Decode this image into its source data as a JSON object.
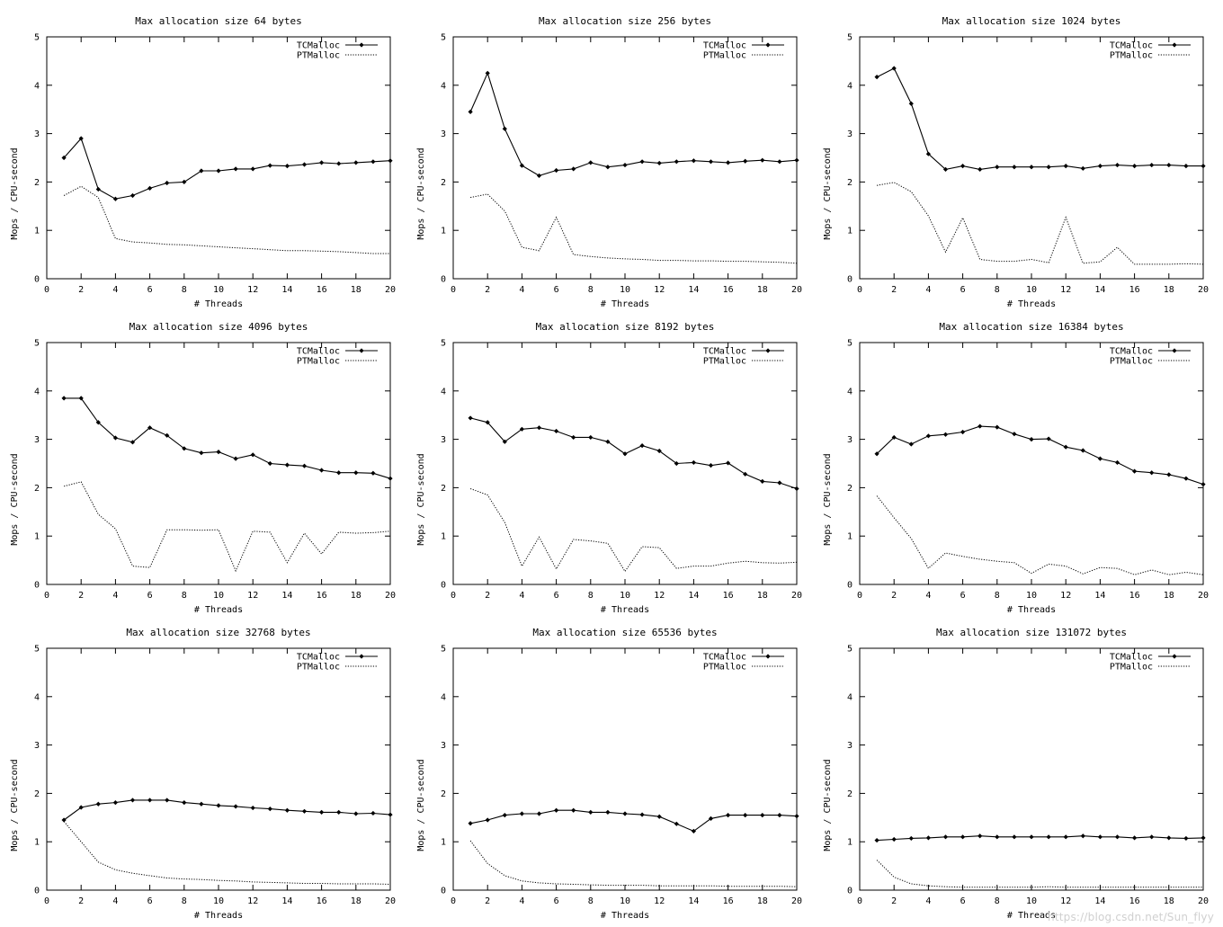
{
  "watermark": "https://blog.csdn.net/Sun_flyy",
  "chart_data": [
    {
      "type": "line",
      "title": "Max allocation size 64 bytes",
      "xlabel": "# Threads",
      "ylabel": "Mops / CPU-second",
      "xlim": [
        0,
        20
      ],
      "ylim": [
        0,
        5
      ],
      "xticks": [
        0,
        2,
        4,
        6,
        8,
        10,
        12,
        14,
        16,
        18,
        20
      ],
      "yticks": [
        0,
        1,
        2,
        3,
        4,
        5
      ],
      "legend_position": "top-right",
      "grid": false,
      "x": [
        1,
        2,
        3,
        4,
        5,
        6,
        7,
        8,
        9,
        10,
        11,
        12,
        13,
        14,
        15,
        16,
        17,
        18,
        19,
        20
      ],
      "series": [
        {
          "name": "TCMalloc",
          "style": "solid-diamond",
          "values": [
            2.5,
            2.9,
            1.85,
            1.65,
            1.72,
            1.87,
            1.98,
            2.0,
            2.23,
            2.23,
            2.27,
            2.27,
            2.34,
            2.33,
            2.36,
            2.4,
            2.38,
            2.4,
            2.42,
            2.44
          ]
        },
        {
          "name": "PTMalloc",
          "style": "dotted",
          "values": [
            1.72,
            1.91,
            1.68,
            0.83,
            0.76,
            0.74,
            0.71,
            0.7,
            0.68,
            0.66,
            0.64,
            0.62,
            0.6,
            0.58,
            0.58,
            0.57,
            0.56,
            0.54,
            0.52,
            0.52
          ]
        }
      ]
    },
    {
      "type": "line",
      "title": "Max allocation size 256 bytes",
      "xlabel": "# Threads",
      "ylabel": "Mops / CPU-second",
      "xlim": [
        0,
        20
      ],
      "ylim": [
        0,
        5
      ],
      "xticks": [
        0,
        2,
        4,
        6,
        8,
        10,
        12,
        14,
        16,
        18,
        20
      ],
      "yticks": [
        0,
        1,
        2,
        3,
        4,
        5
      ],
      "legend_position": "top-right",
      "grid": false,
      "x": [
        1,
        2,
        3,
        4,
        5,
        6,
        7,
        8,
        9,
        10,
        11,
        12,
        13,
        14,
        15,
        16,
        17,
        18,
        19,
        20
      ],
      "series": [
        {
          "name": "TCMalloc",
          "style": "solid-diamond",
          "values": [
            3.45,
            4.25,
            3.1,
            2.34,
            2.13,
            2.24,
            2.27,
            2.4,
            2.31,
            2.35,
            2.42,
            2.39,
            2.42,
            2.44,
            2.42,
            2.4,
            2.43,
            2.45,
            2.42,
            2.45
          ]
        },
        {
          "name": "PTMalloc",
          "style": "dotted",
          "values": [
            1.68,
            1.75,
            1.4,
            0.65,
            0.58,
            1.27,
            0.5,
            0.46,
            0.43,
            0.41,
            0.4,
            0.38,
            0.38,
            0.37,
            0.37,
            0.36,
            0.36,
            0.35,
            0.34,
            0.32
          ]
        }
      ]
    },
    {
      "type": "line",
      "title": "Max allocation size 1024 bytes",
      "xlabel": "# Threads",
      "ylabel": "Mops / CPU-second",
      "xlim": [
        0,
        20
      ],
      "ylim": [
        0,
        5
      ],
      "xticks": [
        0,
        2,
        4,
        6,
        8,
        10,
        12,
        14,
        16,
        18,
        20
      ],
      "yticks": [
        0,
        1,
        2,
        3,
        4,
        5
      ],
      "legend_position": "top-right",
      "grid": false,
      "x": [
        1,
        2,
        3,
        4,
        5,
        6,
        7,
        8,
        9,
        10,
        11,
        12,
        13,
        14,
        15,
        16,
        17,
        18,
        19,
        20
      ],
      "series": [
        {
          "name": "TCMalloc",
          "style": "solid-diamond",
          "values": [
            4.17,
            4.35,
            3.62,
            2.58,
            2.26,
            2.33,
            2.26,
            2.31,
            2.31,
            2.31,
            2.31,
            2.33,
            2.28,
            2.33,
            2.35,
            2.33,
            2.35,
            2.35,
            2.33,
            2.33
          ]
        },
        {
          "name": "PTMalloc",
          "style": "dotted",
          "values": [
            1.93,
            1.99,
            1.8,
            1.3,
            0.55,
            1.26,
            0.4,
            0.36,
            0.36,
            0.4,
            0.33,
            1.27,
            0.32,
            0.35,
            0.65,
            0.3,
            0.3,
            0.3,
            0.31,
            0.3
          ]
        }
      ]
    },
    {
      "type": "line",
      "title": "Max allocation size 4096 bytes",
      "xlabel": "# Threads",
      "ylabel": "Mops / CPU-second",
      "xlim": [
        0,
        20
      ],
      "ylim": [
        0,
        5
      ],
      "xticks": [
        0,
        2,
        4,
        6,
        8,
        10,
        12,
        14,
        16,
        18,
        20
      ],
      "yticks": [
        0,
        1,
        2,
        3,
        4,
        5
      ],
      "legend_position": "top-right",
      "grid": false,
      "x": [
        1,
        2,
        3,
        4,
        5,
        6,
        7,
        8,
        9,
        10,
        11,
        12,
        13,
        14,
        15,
        16,
        17,
        18,
        19,
        20
      ],
      "series": [
        {
          "name": "TCMalloc",
          "style": "solid-diamond",
          "values": [
            3.85,
            3.85,
            3.35,
            3.03,
            2.94,
            3.24,
            3.08,
            2.81,
            2.72,
            2.74,
            2.6,
            2.68,
            2.5,
            2.47,
            2.45,
            2.36,
            2.31,
            2.31,
            2.3,
            2.19
          ]
        },
        {
          "name": "PTMalloc",
          "style": "dotted",
          "values": [
            2.03,
            2.12,
            1.45,
            1.15,
            0.38,
            0.35,
            1.13,
            1.13,
            1.12,
            1.13,
            0.28,
            1.1,
            1.08,
            0.45,
            1.06,
            0.63,
            1.08,
            1.06,
            1.07,
            1.1
          ]
        }
      ]
    },
    {
      "type": "line",
      "title": "Max allocation size 8192 bytes",
      "xlabel": "# Threads",
      "ylabel": "Mops / CPU-second",
      "xlim": [
        0,
        20
      ],
      "ylim": [
        0,
        5
      ],
      "xticks": [
        0,
        2,
        4,
        6,
        8,
        10,
        12,
        14,
        16,
        18,
        20
      ],
      "yticks": [
        0,
        1,
        2,
        3,
        4,
        5
      ],
      "legend_position": "top-right",
      "grid": false,
      "x": [
        1,
        2,
        3,
        4,
        5,
        6,
        7,
        8,
        9,
        10,
        11,
        12,
        13,
        14,
        15,
        16,
        17,
        18,
        19,
        20
      ],
      "series": [
        {
          "name": "TCMalloc",
          "style": "solid-diamond",
          "values": [
            3.44,
            3.35,
            2.95,
            3.21,
            3.24,
            3.17,
            3.04,
            3.04,
            2.95,
            2.7,
            2.87,
            2.76,
            2.5,
            2.52,
            2.46,
            2.51,
            2.28,
            2.13,
            2.1,
            1.98
          ]
        },
        {
          "name": "PTMalloc",
          "style": "dotted",
          "values": [
            1.98,
            1.85,
            1.28,
            0.38,
            0.98,
            0.32,
            0.93,
            0.9,
            0.85,
            0.27,
            0.78,
            0.76,
            0.33,
            0.38,
            0.38,
            0.44,
            0.48,
            0.45,
            0.44,
            0.46
          ]
        }
      ]
    },
    {
      "type": "line",
      "title": "Max allocation size 16384 bytes",
      "xlabel": "# Threads",
      "ylabel": "Mops / CPU-second",
      "xlim": [
        0,
        20
      ],
      "ylim": [
        0,
        5
      ],
      "xticks": [
        0,
        2,
        4,
        6,
        8,
        10,
        12,
        14,
        16,
        18,
        20
      ],
      "yticks": [
        0,
        1,
        2,
        3,
        4,
        5
      ],
      "legend_position": "top-right",
      "grid": false,
      "x": [
        1,
        2,
        3,
        4,
        5,
        6,
        7,
        8,
        9,
        10,
        11,
        12,
        13,
        14,
        15,
        16,
        17,
        18,
        19,
        20
      ],
      "series": [
        {
          "name": "TCMalloc",
          "style": "solid-diamond",
          "values": [
            2.7,
            3.04,
            2.9,
            3.07,
            3.1,
            3.15,
            3.27,
            3.25,
            3.11,
            3.0,
            3.01,
            2.84,
            2.77,
            2.6,
            2.52,
            2.34,
            2.31,
            2.27,
            2.19,
            2.07
          ]
        },
        {
          "name": "PTMalloc",
          "style": "dotted",
          "values": [
            1.83,
            1.38,
            0.95,
            0.33,
            0.65,
            0.58,
            0.52,
            0.48,
            0.45,
            0.23,
            0.42,
            0.38,
            0.22,
            0.35,
            0.33,
            0.2,
            0.3,
            0.2,
            0.25,
            0.2
          ]
        }
      ]
    },
    {
      "type": "line",
      "title": "Max allocation size 32768 bytes",
      "xlabel": "# Threads",
      "ylabel": "Mops / CPU-second",
      "xlim": [
        0,
        20
      ],
      "ylim": [
        0,
        5
      ],
      "xticks": [
        0,
        2,
        4,
        6,
        8,
        10,
        12,
        14,
        16,
        18,
        20
      ],
      "yticks": [
        0,
        1,
        2,
        3,
        4,
        5
      ],
      "legend_position": "top-right",
      "grid": false,
      "x": [
        1,
        2,
        3,
        4,
        5,
        6,
        7,
        8,
        9,
        10,
        11,
        12,
        13,
        14,
        15,
        16,
        17,
        18,
        19,
        20
      ],
      "series": [
        {
          "name": "TCMalloc",
          "style": "solid-diamond",
          "values": [
            1.45,
            1.71,
            1.78,
            1.81,
            1.86,
            1.86,
            1.86,
            1.81,
            1.78,
            1.75,
            1.73,
            1.7,
            1.68,
            1.65,
            1.63,
            1.61,
            1.61,
            1.58,
            1.59,
            1.56
          ]
        },
        {
          "name": "PTMalloc",
          "style": "dotted",
          "values": [
            1.42,
            1.0,
            0.58,
            0.42,
            0.35,
            0.3,
            0.25,
            0.23,
            0.22,
            0.2,
            0.19,
            0.17,
            0.16,
            0.15,
            0.14,
            0.14,
            0.13,
            0.13,
            0.13,
            0.12
          ]
        }
      ]
    },
    {
      "type": "line",
      "title": "Max allocation size 65536 bytes",
      "xlabel": "# Threads",
      "ylabel": "Mops / CPU-second",
      "xlim": [
        0,
        20
      ],
      "ylim": [
        0,
        5
      ],
      "xticks": [
        0,
        2,
        4,
        6,
        8,
        10,
        12,
        14,
        16,
        18,
        20
      ],
      "yticks": [
        0,
        1,
        2,
        3,
        4,
        5
      ],
      "legend_position": "top-right",
      "grid": false,
      "x": [
        1,
        2,
        3,
        4,
        5,
        6,
        7,
        8,
        9,
        10,
        11,
        12,
        13,
        14,
        15,
        16,
        17,
        18,
        19,
        20
      ],
      "series": [
        {
          "name": "TCMalloc",
          "style": "solid-diamond",
          "values": [
            1.38,
            1.45,
            1.55,
            1.58,
            1.58,
            1.65,
            1.65,
            1.61,
            1.61,
            1.58,
            1.56,
            1.52,
            1.37,
            1.22,
            1.48,
            1.55,
            1.55,
            1.55,
            1.55,
            1.53
          ]
        },
        {
          "name": "PTMalloc",
          "style": "dotted",
          "values": [
            1.02,
            0.55,
            0.3,
            0.19,
            0.15,
            0.13,
            0.12,
            0.11,
            0.1,
            0.1,
            0.1,
            0.09,
            0.09,
            0.09,
            0.09,
            0.08,
            0.08,
            0.08,
            0.08,
            0.07
          ]
        }
      ]
    },
    {
      "type": "line",
      "title": "Max allocation size 131072 bytes",
      "xlabel": "# Threads",
      "ylabel": "Mops / CPU-second",
      "xlim": [
        0,
        20
      ],
      "ylim": [
        0,
        5
      ],
      "xticks": [
        0,
        2,
        4,
        6,
        8,
        10,
        12,
        14,
        16,
        18,
        20
      ],
      "yticks": [
        0,
        1,
        2,
        3,
        4,
        5
      ],
      "legend_position": "top-right",
      "grid": false,
      "x": [
        1,
        2,
        3,
        4,
        5,
        6,
        7,
        8,
        9,
        10,
        11,
        12,
        13,
        14,
        15,
        16,
        17,
        18,
        19,
        20
      ],
      "series": [
        {
          "name": "TCMalloc",
          "style": "solid-diamond",
          "values": [
            1.03,
            1.05,
            1.07,
            1.08,
            1.1,
            1.1,
            1.12,
            1.1,
            1.1,
            1.1,
            1.1,
            1.1,
            1.12,
            1.1,
            1.1,
            1.08,
            1.1,
            1.08,
            1.07,
            1.08
          ]
        },
        {
          "name": "PTMalloc",
          "style": "dotted",
          "values": [
            0.62,
            0.27,
            0.13,
            0.09,
            0.07,
            0.06,
            0.06,
            0.06,
            0.06,
            0.06,
            0.07,
            0.06,
            0.06,
            0.06,
            0.06,
            0.06,
            0.06,
            0.06,
            0.06,
            0.06
          ]
        }
      ]
    }
  ]
}
